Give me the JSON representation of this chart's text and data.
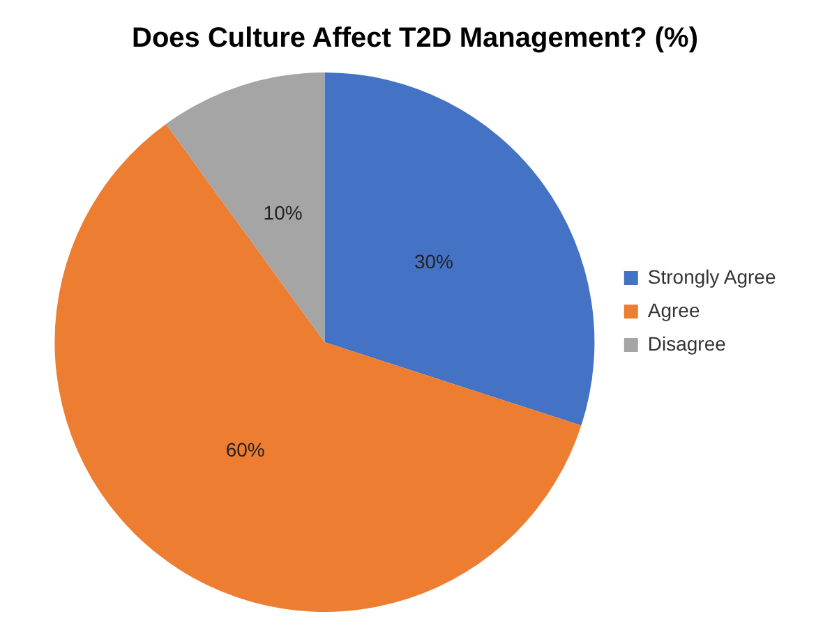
{
  "chart_data": {
    "type": "pie",
    "title": "Does Culture Affect T2D Management? (%)",
    "categories": [
      "Strongly Agree",
      "Agree",
      "Disagree"
    ],
    "values": [
      30,
      60,
      10
    ],
    "colors": [
      "#4472c4",
      "#ed7d31",
      "#a5a5a5"
    ],
    "value_labels": [
      "30%",
      "60%",
      "10%"
    ],
    "legend": "right"
  }
}
